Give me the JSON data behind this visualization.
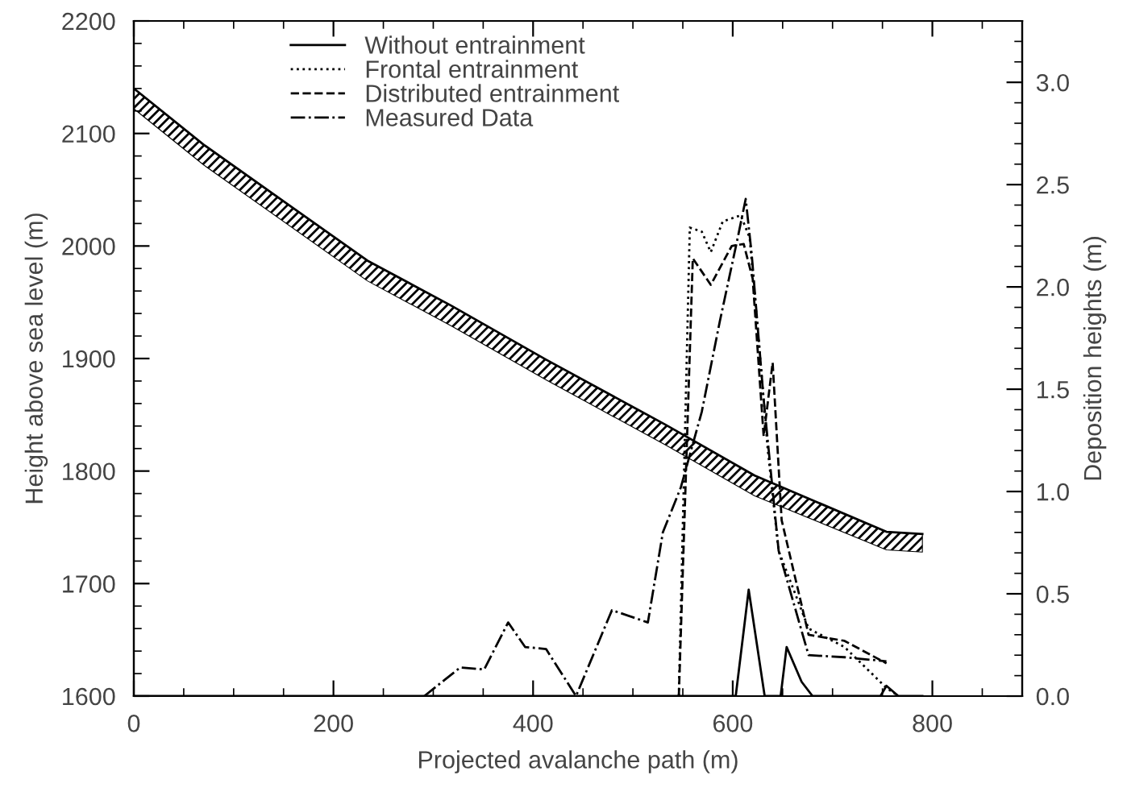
{
  "chart_data": {
    "type": "line",
    "xlabel": "Projected avalanche path (m)",
    "ylabel": "Height above sea level (m)",
    "y2label": "Deposition heights (m)",
    "xlim": [
      0,
      890
    ],
    "xticks": [
      0,
      200,
      400,
      600,
      800
    ],
    "ylim": [
      1600,
      2200
    ],
    "yticks": [
      1600,
      1700,
      1800,
      1900,
      2000,
      2100,
      2200
    ],
    "y2lim": [
      0,
      3.3
    ],
    "y2ticks": [
      {
        "value": 0,
        "label": "0.0"
      },
      0.5,
      {
        "value": 1,
        "label": "1.0"
      },
      1.5,
      {
        "value": 2,
        "label": "2.0"
      },
      2.5,
      {
        "value": 3,
        "label": "3.0"
      }
    ],
    "legend": "top left",
    "grid": false,
    "series": [
      {
        "type": "line",
        "color": "#000000",
        "x": [
          0,
          70,
          234,
          318,
          413,
          533,
          622,
          754,
          790
        ],
        "values": [
          2140,
          2090,
          1987,
          1947,
          1899,
          1841,
          1796,
          1746,
          1744
        ],
        "upper": [
          2140,
          2090,
          1987,
          1947,
          1899,
          1841,
          1796,
          1746,
          1744
        ],
        "lower": [
          2122,
          2072,
          1969,
          1929,
          1881,
          1823,
          1778,
          1730,
          1728
        ]
      },
      {
        "name": "Without entrainment",
        "axis": "y2",
        "color": "#000000",
        "line_style": "solid",
        "x": [
          0,
          603,
          616,
          632,
          648,
          654,
          669,
          680,
          748,
          754,
          766,
          790
        ],
        "values": [
          0,
          0,
          0.52,
          0,
          0,
          0.24,
          0.07,
          0,
          0,
          0.05,
          0,
          0
        ]
      },
      {
        "name": "Frontal entrainment",
        "axis": "y2",
        "color": "#000000",
        "line_style": "dotted",
        "x": [
          546,
          557,
          569,
          578,
          590,
          608,
          617,
          626,
          635,
          646,
          676,
          712,
          754,
          766
        ],
        "values": [
          0,
          2.29,
          2.27,
          2.17,
          2.32,
          2.35,
          2.24,
          1.74,
          1.21,
          0.71,
          0.33,
          0.24,
          0.04,
          0
        ]
      },
      {
        "name": "Distributed entrainment",
        "axis": "y2",
        "color": "#000000",
        "line_style": "dashed",
        "x": [
          546,
          560,
          578,
          599,
          611,
          620,
          631,
          640,
          649,
          676,
          712,
          754
        ],
        "values": [
          0,
          2.14,
          2.01,
          2.2,
          2.21,
          2.04,
          1.27,
          1.63,
          0.86,
          0.3,
          0.27,
          0.16
        ]
      },
      {
        "name": "Measured Data",
        "axis": "y2",
        "color": "#000000",
        "line_style": "dashdot",
        "x": [
          291,
          327,
          351,
          375,
          392,
          413,
          443,
          479,
          515,
          530,
          548,
          569,
          587,
          605,
          613,
          619,
          631,
          646,
          676,
          712,
          754
        ],
        "values": [
          0,
          0.14,
          0.13,
          0.36,
          0.24,
          0.23,
          0,
          0.42,
          0.36,
          0.8,
          1.02,
          1.39,
          1.83,
          2.24,
          2.43,
          2.16,
          1.45,
          0.71,
          0.2,
          0.19,
          0.17
        ]
      }
    ]
  }
}
